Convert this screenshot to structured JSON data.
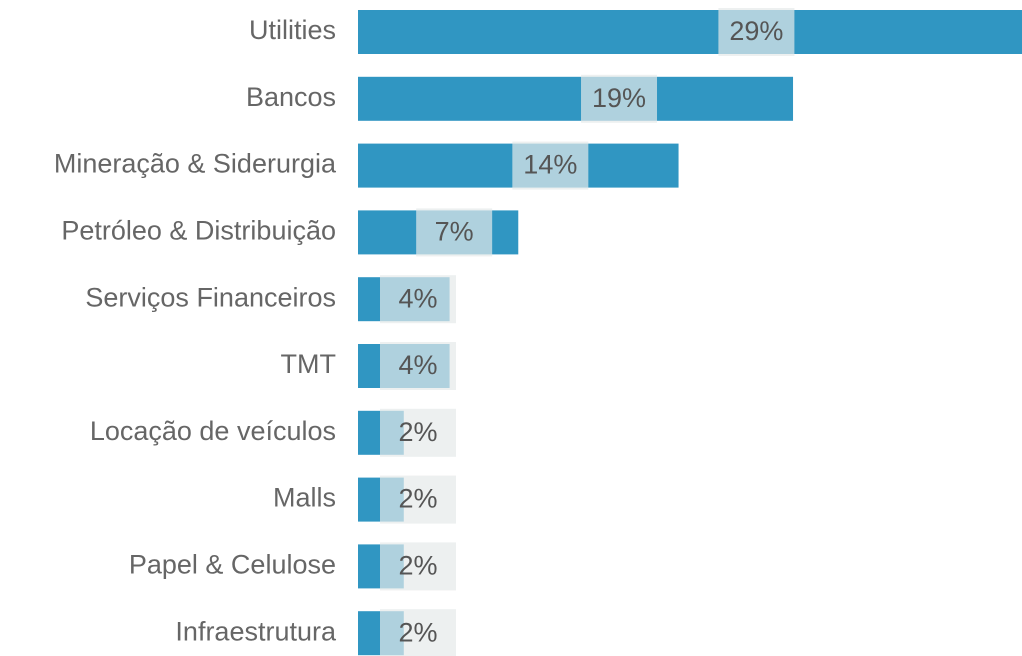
{
  "chart_data": {
    "type": "bar",
    "orientation": "horizontal",
    "categories": [
      "Utilities",
      "Bancos",
      "Mineração & Siderurgia",
      "Petróleo & Distribuição",
      "Serviços Financeiros",
      "TMT",
      "Locação de veículos",
      "Malls",
      "Papel & Celulose",
      "Infraestrutura"
    ],
    "values": [
      29,
      19,
      14,
      7,
      4,
      4,
      2,
      2,
      2,
      2
    ],
    "value_labels": [
      "29%",
      "19%",
      "14%",
      "7%",
      "4%",
      "4%",
      "2%",
      "2%",
      "2%",
      "2%"
    ],
    "color": "#3096c2",
    "xlim": [
      0,
      29
    ]
  }
}
